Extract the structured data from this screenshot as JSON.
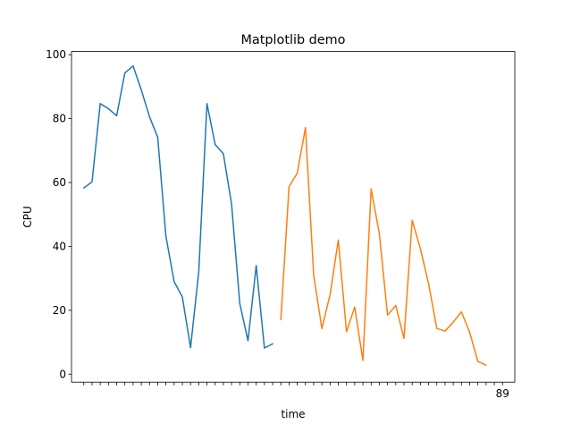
{
  "chart_data": {
    "type": "line",
    "title": "Matplotlib demo",
    "xlabel": "time",
    "ylabel": "CPU",
    "ylim": [
      -2.5,
      101
    ],
    "yticks": [
      0,
      20,
      40,
      60,
      80,
      100
    ],
    "grid": false,
    "legend": "none",
    "x_tick_count": 52,
    "x_last_tick_label": "89",
    "series": [
      {
        "color": "#1f77b4",
        "x": [
          0,
          1,
          2,
          3,
          4,
          5,
          6,
          7,
          8,
          9,
          10,
          11,
          12,
          13,
          14,
          15,
          16,
          17,
          18,
          19,
          20,
          21,
          22,
          23,
          24
        ],
        "values": [
          58.3,
          60.2,
          84.7,
          83.1,
          80.9,
          94.3,
          96.5,
          89.0,
          80.6,
          74.2,
          43.2,
          29.0,
          24.2,
          8.3,
          32.0,
          84.7,
          71.9,
          69.0,
          53.2,
          22.1,
          10.5,
          34.0,
          8.2,
          9.5,
          null
        ]
      },
      {
        "color": "#ff7f0e",
        "x": [
          24,
          25,
          26,
          27,
          28,
          29,
          30,
          31,
          32,
          33,
          34,
          35,
          36,
          37,
          38,
          39,
          40,
          41,
          42,
          43,
          44,
          45,
          46,
          47,
          48,
          49,
          50,
          51
        ],
        "values": [
          17.1,
          58.7,
          62.9,
          77.2,
          31.0,
          14.3,
          24.9,
          42.0,
          13.3,
          21.0,
          4.3,
          58.0,
          44.0,
          18.5,
          21.5,
          11.2,
          48.2,
          39.3,
          28.3,
          14.3,
          13.5,
          16.3,
          19.5,
          13.1,
          4.0,
          2.8,
          null,
          null
        ]
      }
    ]
  }
}
